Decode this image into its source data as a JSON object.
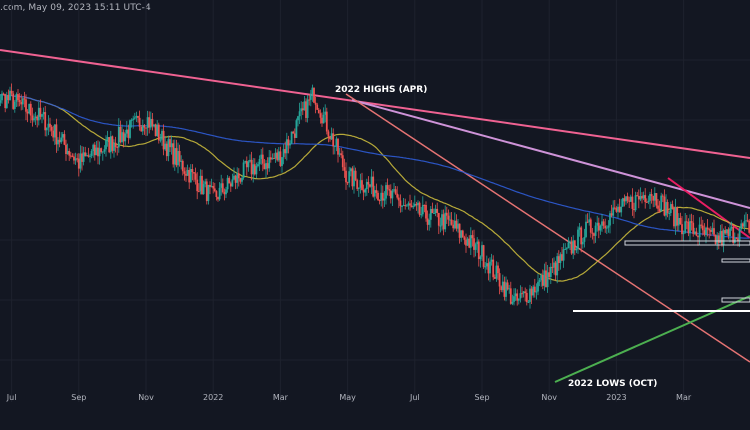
{
  "header": {
    "info": ".com, May 09, 2023 15:11 UTC-4"
  },
  "chart_data": {
    "type": "candlestick",
    "xaxis": {
      "tick_labels": [
        "Jul",
        "Sep",
        "Nov",
        "2022",
        "Mar",
        "May",
        "Jul",
        "Sep",
        "Nov",
        "2023",
        "Mar"
      ],
      "start_month": "2021-06",
      "end_month": "2023-05"
    },
    "annotations": {
      "high_label": "2022 HIGHS (APR)",
      "low_label": "2022 LOWS (OCT)"
    },
    "price_series": {
      "description": "Daily candles, monthly anchor prices (index-relative 0-100 scale)",
      "anchors": [
        [
          "2021-06-01",
          82
        ],
        [
          "2021-07-01",
          80
        ],
        [
          "2021-08-01",
          74
        ],
        [
          "2021-09-01",
          62
        ],
        [
          "2021-10-01",
          68
        ],
        [
          "2021-11-01",
          75
        ],
        [
          "2021-12-01",
          62
        ],
        [
          "2022-01-01",
          52
        ],
        [
          "2022-02-01",
          60
        ],
        [
          "2022-03-01",
          64
        ],
        [
          "2022-04-01",
          82
        ],
        [
          "2022-05-01",
          58
        ],
        [
          "2022-06-01",
          54
        ],
        [
          "2022-07-01",
          48
        ],
        [
          "2022-08-01",
          45
        ],
        [
          "2022-09-01",
          36
        ],
        [
          "2022-10-01",
          22
        ],
        [
          "2022-11-01",
          30
        ],
        [
          "2022-12-01",
          42
        ],
        [
          "2023-01-01",
          48
        ],
        [
          "2023-02-01",
          54
        ],
        [
          "2023-03-01",
          44
        ],
        [
          "2023-04-01",
          40
        ],
        [
          "2023-05-01",
          44
        ]
      ]
    },
    "moving_averages": [
      {
        "color": "#c9b93c"
      },
      {
        "color": "#2f5cd6"
      }
    ],
    "colors": {
      "background": "#131722",
      "up_candle": "#26a69a",
      "down_candle": "#ef5350",
      "trendline_pink": "#f06292",
      "trendline_violet": "#ce93d8",
      "trendline_red": "#e57373",
      "support_green": "#4caf50",
      "level_white": "#ffffff"
    }
  }
}
